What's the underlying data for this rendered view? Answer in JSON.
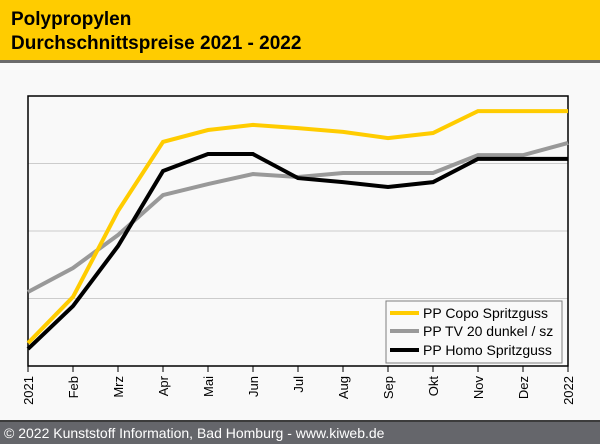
{
  "header": {
    "title_line1": "Polypropylen",
    "title_line2": "Durchschnittspreise 2021 - 2022"
  },
  "footer": {
    "text": "© 2022 Kunststoff Information, Bad Homburg - www.kiweb.de"
  },
  "chart_data": {
    "type": "line",
    "title": "Polypropylen Durchschnittspreise 2021 - 2022",
    "xlabel": "",
    "ylabel": "",
    "x": [
      "2021",
      "Feb",
      "Mrz",
      "Apr",
      "Mai",
      "Jun",
      "Jul",
      "Aug",
      "Sep",
      "Okt",
      "Nov",
      "Dez",
      "2022"
    ],
    "ylim": [
      0,
      100
    ],
    "y_units": "relative index (no y-axis labels shown)",
    "grid": true,
    "y_gridlines": [
      25,
      50,
      75
    ],
    "legend_position": "bottom-right",
    "series": [
      {
        "name": "PP Copo Spritzguss",
        "color": "#ffcc00",
        "values": [
          8.5,
          25.6,
          57.4,
          83.0,
          87.4,
          89.3,
          88.1,
          86.7,
          84.4,
          86.3,
          94.4,
          94.4,
          94.4
        ]
      },
      {
        "name": "PP TV 20 dunkel / sz",
        "color": "#999999",
        "values": [
          27.4,
          36.3,
          48.5,
          63.3,
          67.4,
          71.1,
          70.0,
          71.5,
          71.5,
          71.5,
          78.1,
          78.1,
          82.6
        ]
      },
      {
        "name": "PP Homo Spritzguss",
        "color": "#000000",
        "values": [
          6.3,
          22.2,
          44.4,
          72.2,
          78.5,
          78.5,
          69.6,
          68.1,
          66.3,
          68.1,
          76.7,
          76.7,
          76.7
        ]
      }
    ]
  }
}
